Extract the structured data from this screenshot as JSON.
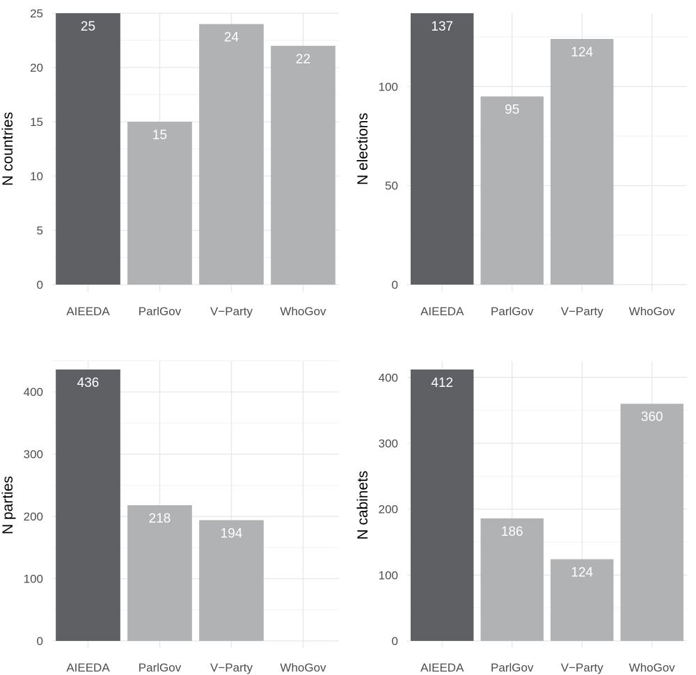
{
  "colors": {
    "highlight_bar": "#5e6064",
    "other_bar": "#b1b2b4",
    "grid_major": "#e6e6e6",
    "grid_minor": "#f2f2f2",
    "tick_text": "#4d4d4d",
    "data_label": "#ffffff"
  },
  "chart_data": [
    {
      "type": "bar",
      "categories": [
        "AIEEDA",
        "ParlGov",
        "V−Party",
        "WhoGov"
      ],
      "values": [
        25,
        15,
        24,
        22
      ],
      "data_labels": [
        "25",
        "15",
        "24",
        "22"
      ],
      "title": "",
      "xlabel": "",
      "ylabel": "N countries",
      "ylim": [
        0,
        25
      ],
      "yticks": [
        0,
        5,
        10,
        15,
        20,
        25
      ],
      "ytick_labels": [
        "0",
        "5",
        "10",
        "15",
        "20",
        "25"
      ],
      "grid": true,
      "legend": "none"
    },
    {
      "type": "bar",
      "categories": [
        "AIEEDA",
        "ParlGov",
        "V−Party",
        "WhoGov"
      ],
      "values": [
        137,
        95,
        124,
        0
      ],
      "data_labels": [
        "137",
        "95",
        "124",
        ""
      ],
      "title": "",
      "xlabel": "",
      "ylabel": "N elections",
      "ylim": [
        0,
        137
      ],
      "yticks": [
        0,
        50,
        100
      ],
      "ytick_labels": [
        "0",
        "50",
        "100"
      ],
      "grid": true,
      "legend": "none"
    },
    {
      "type": "bar",
      "categories": [
        "AIEEDA",
        "ParlGov",
        "V−Party",
        "WhoGov"
      ],
      "values": [
        436,
        218,
        194,
        0
      ],
      "data_labels": [
        "436",
        "218",
        "194",
        ""
      ],
      "title": "",
      "xlabel": "",
      "ylabel": "N parties",
      "ylim": [
        0,
        436
      ],
      "yticks": [
        0,
        100,
        200,
        300,
        400
      ],
      "ytick_labels": [
        "0",
        "100",
        "200",
        "300",
        "400"
      ],
      "grid": true,
      "legend": "none"
    },
    {
      "type": "bar",
      "categories": [
        "AIEEDA",
        "ParlGov",
        "V−Party",
        "WhoGov"
      ],
      "values": [
        412,
        186,
        124,
        360
      ],
      "data_labels": [
        "412",
        "186",
        "124",
        "360"
      ],
      "title": "",
      "xlabel": "",
      "ylabel": "N cabinets",
      "ylim": [
        0,
        412
      ],
      "yticks": [
        0,
        100,
        200,
        300,
        400
      ],
      "ytick_labels": [
        "0",
        "100",
        "200",
        "300",
        "400"
      ],
      "grid": true,
      "legend": "none"
    }
  ]
}
